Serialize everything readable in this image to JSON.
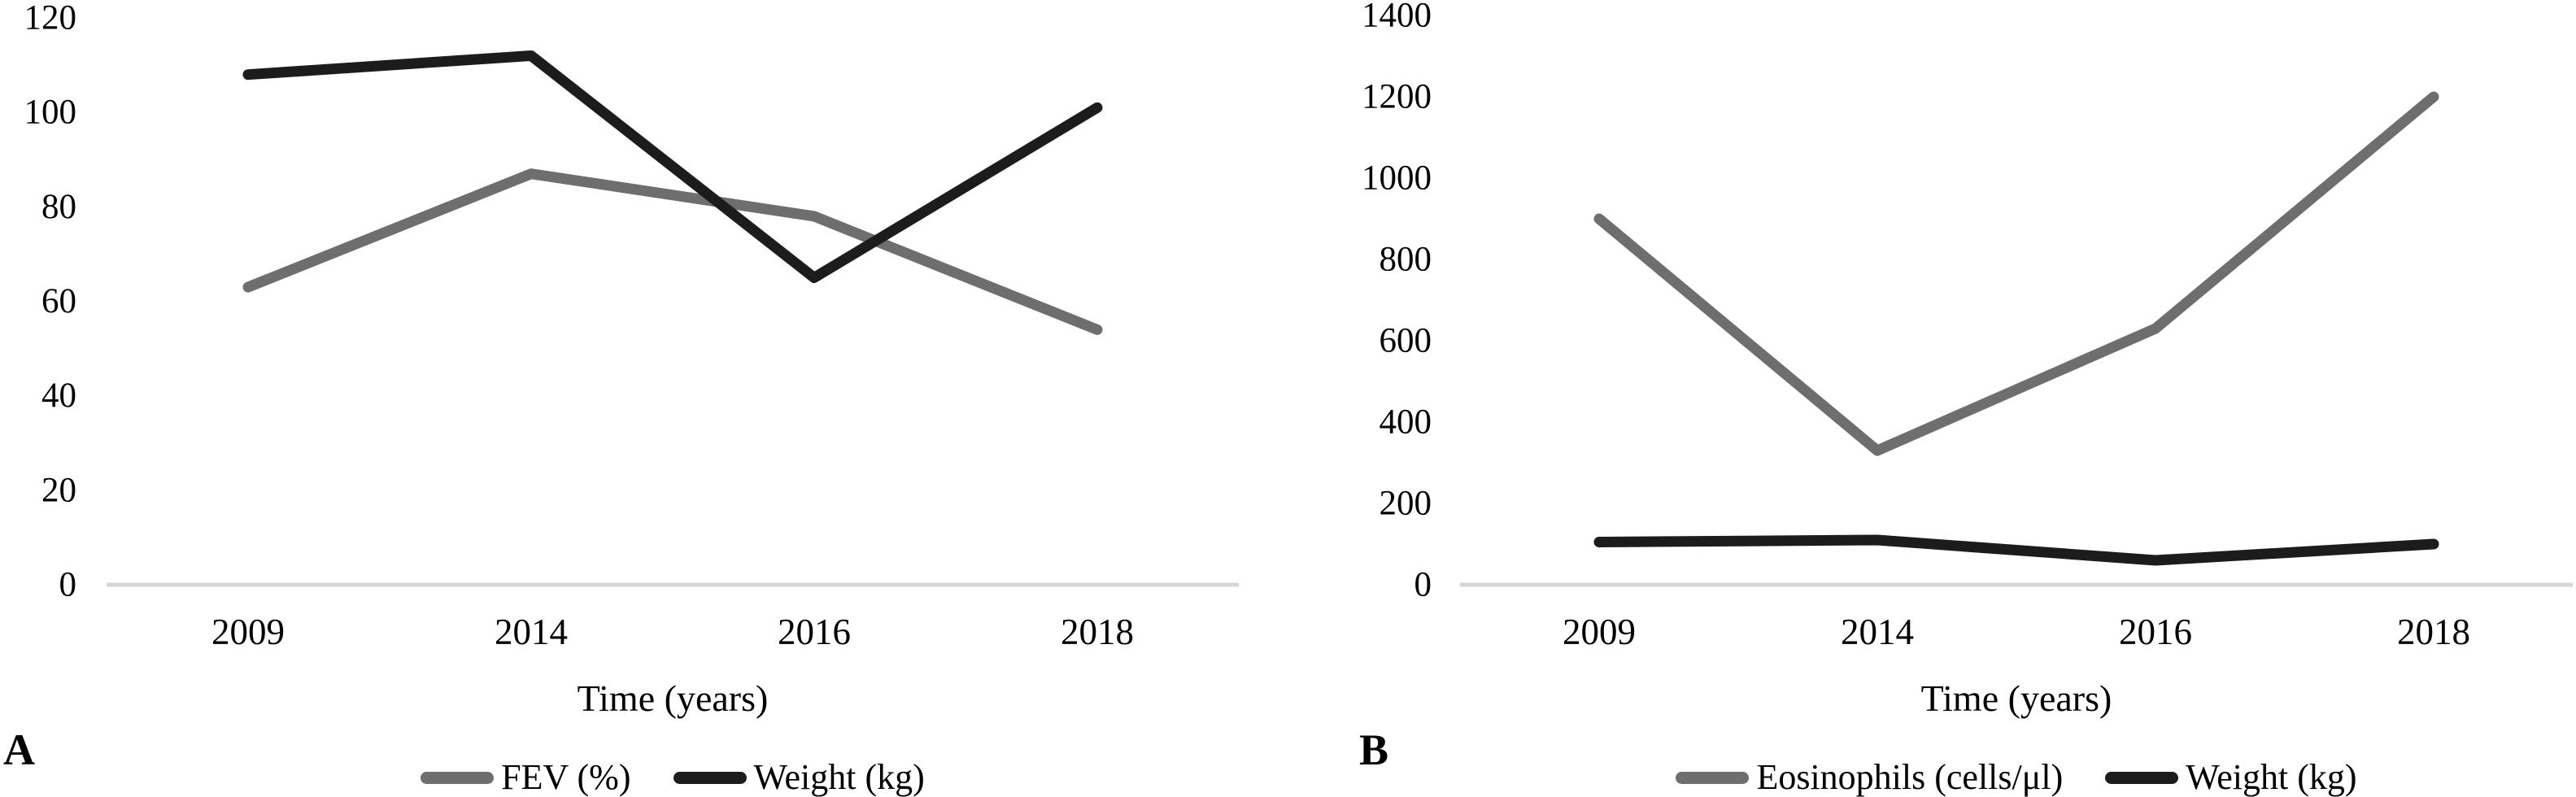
{
  "figure_type": "two-panel line chart figure",
  "colors": {
    "background": "#ffffff",
    "axis_baseline": "#d6d6d6",
    "text": "#000000",
    "series_gray": "#6e6e6e",
    "series_black": "#1c1c1c"
  },
  "chart_data": [
    {
      "panel_label": "A",
      "type": "line",
      "title": "",
      "categories": [
        "2009",
        "2014",
        "2016",
        "2018"
      ],
      "xlabel": "Time (years)",
      "ylabel": "",
      "ylim": [
        0,
        120
      ],
      "yticks": [
        0,
        20,
        40,
        60,
        80,
        100,
        120
      ],
      "grid": false,
      "legend_position": "bottom",
      "series": [
        {
          "name": "FEV (%)",
          "color": "#6e6e6e",
          "values": [
            63,
            87,
            78,
            54
          ]
        },
        {
          "name": "Weight (kg)",
          "color": "#1c1c1c",
          "values": [
            108,
            112,
            65,
            101
          ]
        }
      ]
    },
    {
      "panel_label": "B",
      "type": "line",
      "title": "",
      "categories": [
        "2009",
        "2014",
        "2016",
        "2018"
      ],
      "xlabel": "Time (years)",
      "ylabel": "",
      "ylim": [
        0,
        1400
      ],
      "yticks": [
        0,
        200,
        400,
        600,
        800,
        1000,
        1200,
        1400
      ],
      "grid": false,
      "legend_position": "bottom",
      "series": [
        {
          "name": "Eosinophils (cells/μl)",
          "color": "#6e6e6e",
          "values": [
            900,
            330,
            630,
            1200
          ]
        },
        {
          "name": "Weight (kg)",
          "color": "#1c1c1c",
          "values": [
            105,
            110,
            60,
            100
          ]
        }
      ]
    }
  ]
}
